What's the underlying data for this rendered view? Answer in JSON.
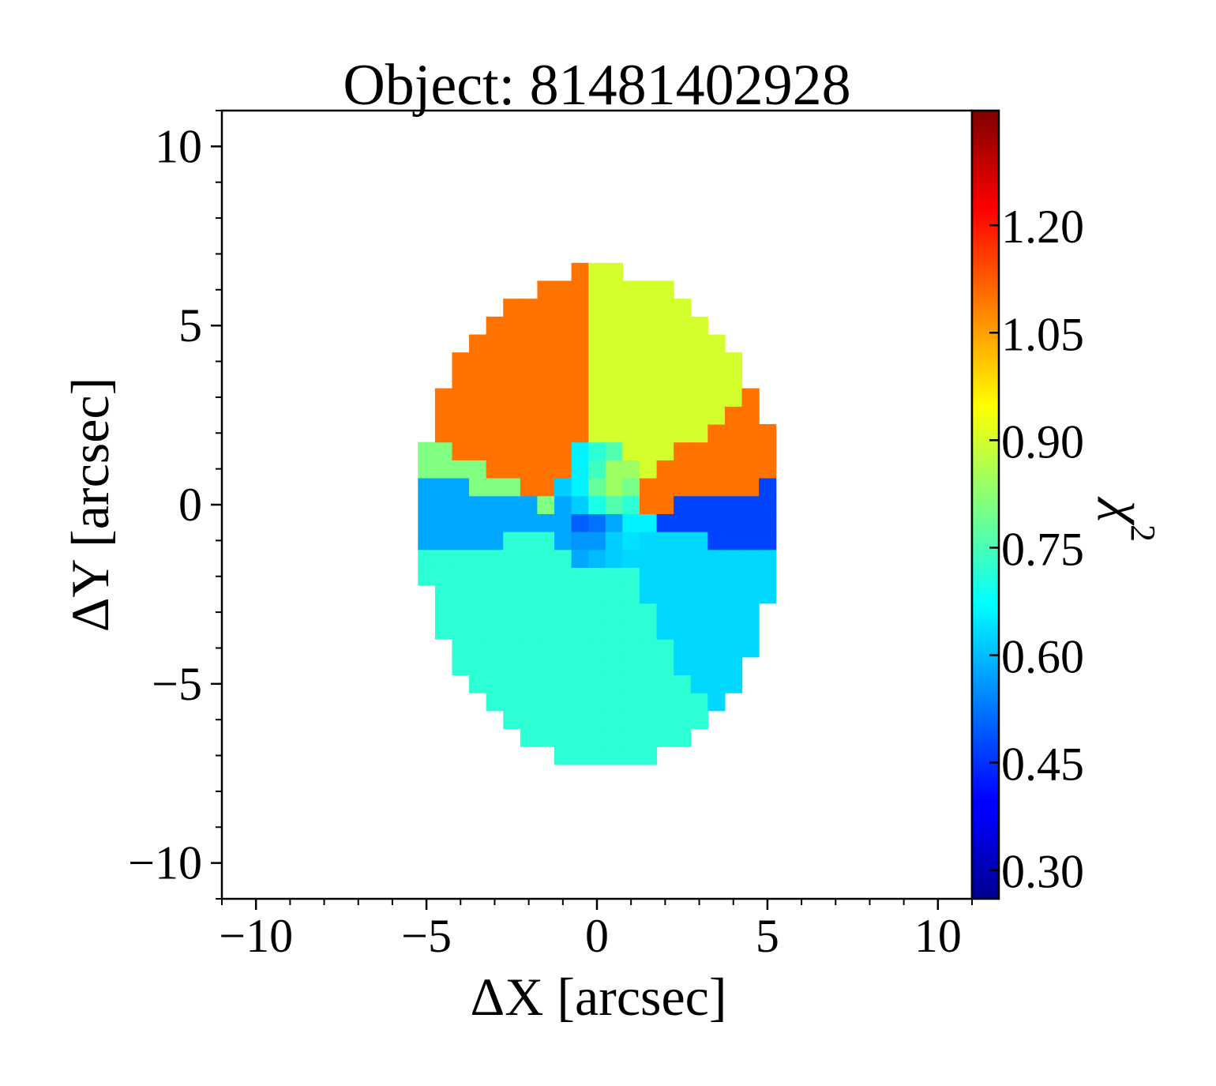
{
  "chart_data": {
    "type": "heatmap",
    "title": "Object: 81481402928",
    "xlabel": "ΔX [arcsec]",
    "ylabel": "ΔY [arcsec]",
    "xlim": [
      -11,
      11
    ],
    "ylim": [
      -11,
      11
    ],
    "xticks": [
      -10,
      -5,
      0,
      5,
      10
    ],
    "xtick_labels": [
      "−10",
      "−5",
      "0",
      "5",
      "10"
    ],
    "yticks": [
      10,
      5,
      0,
      -5,
      -10
    ],
    "ytick_labels": [
      "10",
      "5",
      "0",
      "−5",
      "−10"
    ],
    "grid": false,
    "colormap": "jet",
    "colorbar": {
      "label_base": "χ",
      "label_exp": "2",
      "range": [
        0.26,
        1.36
      ],
      "ticks": [
        1.2,
        1.05,
        0.9,
        0.75,
        0.6,
        0.45,
        0.3
      ],
      "tick_labels": [
        "1.20",
        "1.05",
        "0.90",
        "0.75",
        "0.60",
        "0.45",
        "0.30"
      ]
    },
    "map": {
      "center": [
        0.1,
        -0.35
      ],
      "semi_axes": [
        5.3,
        6.9
      ],
      "pixel_scale": 0.5
    },
    "regions": [
      {
        "name": "north-west",
        "angle_from": 95,
        "angle_to": 158,
        "chi2": 1.1
      },
      {
        "name": "north",
        "angle_from": 38,
        "angle_to": 95,
        "chi2": 0.9
      },
      {
        "name": "north-east",
        "angle_from": 10,
        "angle_to": 38,
        "chi2": 1.1
      },
      {
        "name": "east",
        "angle_from": -12,
        "angle_to": 10,
        "chi2": 0.47
      },
      {
        "name": "south-east-a",
        "angle_from": -38,
        "angle_to": -12,
        "chi2": 0.63
      },
      {
        "name": "south-east-b",
        "angle_from": -60,
        "angle_to": -38,
        "chi2": 0.63
      },
      {
        "name": "south",
        "angle_from": -118,
        "angle_to": -60,
        "chi2": 0.72
      },
      {
        "name": "south-west",
        "angle_from": -168,
        "angle_to": -118,
        "chi2": 0.72
      },
      {
        "name": "west",
        "angle_from": 168,
        "angle_to": 192,
        "chi2": 0.58
      },
      {
        "name": "west-north",
        "angle_from": 158,
        "angle_to": 168,
        "chi2": 0.81
      }
    ],
    "core_cells": [
      {
        "x": -0.5,
        "y": 1.5,
        "chi2": 0.66
      },
      {
        "x": 0.0,
        "y": 1.5,
        "chi2": 0.72
      },
      {
        "x": 0.5,
        "y": 1.5,
        "chi2": 0.76
      },
      {
        "x": -0.5,
        "y": 1.0,
        "chi2": 0.66
      },
      {
        "x": 0.0,
        "y": 1.0,
        "chi2": 0.74
      },
      {
        "x": 0.5,
        "y": 1.0,
        "chi2": 0.84
      },
      {
        "x": 1.0,
        "y": 1.0,
        "chi2": 0.84
      },
      {
        "x": -1.0,
        "y": 0.5,
        "chi2": 0.62
      },
      {
        "x": -0.5,
        "y": 0.5,
        "chi2": 0.66
      },
      {
        "x": 0.0,
        "y": 0.5,
        "chi2": 0.78
      },
      {
        "x": 0.5,
        "y": 0.5,
        "chi2": 0.84
      },
      {
        "x": 1.0,
        "y": 0.5,
        "chi2": 0.8
      },
      {
        "x": -1.0,
        "y": 0.0,
        "chi2": 0.58
      },
      {
        "x": -0.5,
        "y": 0.0,
        "chi2": 0.62
      },
      {
        "x": 0.0,
        "y": 0.0,
        "chi2": 0.7
      },
      {
        "x": 0.5,
        "y": 0.0,
        "chi2": 0.76
      },
      {
        "x": 1.0,
        "y": 0.0,
        "chi2": 0.72
      },
      {
        "x": -0.5,
        "y": -0.5,
        "chi2": 0.5
      },
      {
        "x": 0.0,
        "y": -0.5,
        "chi2": 0.52
      },
      {
        "x": 0.5,
        "y": -0.5,
        "chi2": 0.58
      },
      {
        "x": 1.0,
        "y": -0.5,
        "chi2": 0.66
      },
      {
        "x": 1.5,
        "y": -0.5,
        "chi2": 0.66
      },
      {
        "x": -1.0,
        "y": -1.0,
        "chi2": 0.58
      },
      {
        "x": -0.5,
        "y": -1.0,
        "chi2": 0.56
      },
      {
        "x": 0.0,
        "y": -1.0,
        "chi2": 0.56
      },
      {
        "x": 0.5,
        "y": -1.0,
        "chi2": 0.62
      },
      {
        "x": 1.0,
        "y": -1.0,
        "chi2": 0.64
      },
      {
        "x": -0.5,
        "y": -1.5,
        "chi2": 0.58
      },
      {
        "x": 0.0,
        "y": -1.5,
        "chi2": 0.6
      },
      {
        "x": 0.5,
        "y": -1.5,
        "chi2": 0.62
      }
    ]
  }
}
